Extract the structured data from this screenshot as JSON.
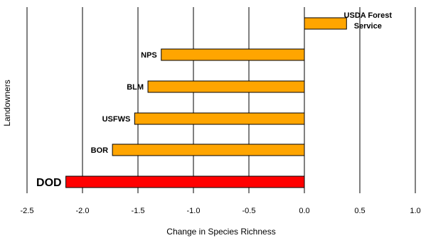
{
  "chart_data": {
    "type": "bar",
    "orientation": "horizontal",
    "categories": [
      "USDA Forest Service",
      "NPS",
      "BLM",
      "USFWS",
      "BOR",
      "DOD"
    ],
    "label_lines": [
      [
        "USDA Forest",
        "Service"
      ],
      [
        "NPS"
      ],
      [
        "BLM"
      ],
      [
        "USFWS"
      ],
      [
        "BOR"
      ],
      [
        "DOD"
      ]
    ],
    "values": [
      0.38,
      -1.29,
      -1.41,
      -1.53,
      -1.73,
      -2.15
    ],
    "bar_colors": [
      "#FFA500",
      "#FFA500",
      "#FFA500",
      "#FFA500",
      "#FFA500",
      "#FF0000"
    ],
    "highlight_category": "DOD",
    "title": "",
    "xlabel": "Change in Species Richness",
    "ylabel": "Landowners",
    "xlim": [
      -2.5,
      1.0
    ],
    "xticks": [
      -2.5,
      -2.0,
      -1.5,
      -1.0,
      -0.5,
      0.0,
      0.5,
      1.0
    ],
    "xtick_labels": [
      "-2.5",
      "-2.0",
      "-1.5",
      "-1.0",
      "-0.5",
      "0.0",
      "0.5",
      "1.0"
    ],
    "grid": "vertical",
    "legend": "none",
    "colors": {
      "bar": "#FFA500",
      "highlight": "#FF0000",
      "bar_edge": "#000000",
      "grid": "#000000"
    }
  }
}
